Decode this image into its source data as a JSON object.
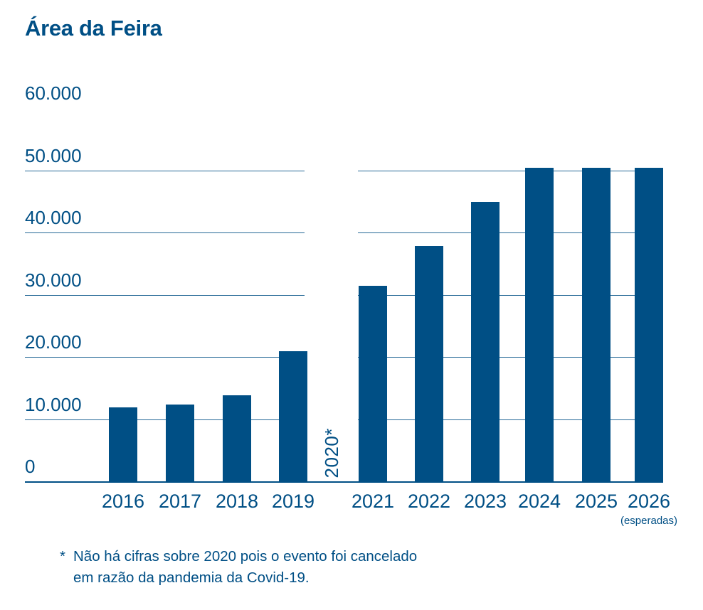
{
  "title": "Área da Feira",
  "colors": {
    "primary": "#004f85",
    "background": "#ffffff"
  },
  "chart_data": {
    "type": "bar",
    "title": "Área da Feira",
    "categories": [
      "2016",
      "2017",
      "2018",
      "2019",
      "2020*",
      "2021",
      "2022",
      "2023",
      "2024",
      "2025",
      "2026"
    ],
    "values": [
      12000,
      12500,
      14000,
      21000,
      null,
      31500,
      38000,
      45000,
      50500,
      50500,
      50500
    ],
    "ylim": [
      0,
      60000
    ],
    "yticks": [
      {
        "label": "60.000",
        "value": 60000
      },
      {
        "label": "50.000",
        "value": 50000
      },
      {
        "label": "40.000",
        "value": 40000
      },
      {
        "label": "30.000",
        "value": 30000
      },
      {
        "label": "20.000",
        "value": 20000
      },
      {
        "label": "10.000",
        "value": 10000
      },
      {
        "label": "0",
        "value": 0
      }
    ],
    "xlabel": "",
    "ylabel": "",
    "grid": true,
    "legend": "none",
    "bar_color": "#004f85",
    "gap_category": "2020*",
    "gap_reason_refers_to_footnote": true
  },
  "annotations": {
    "expected_label": "(esperadas)",
    "footnote_marker": "*",
    "footnote_line1": "Não há cifras sobre 2020 pois o evento foi cancelado",
    "footnote_line2": "em razão da pandemia da Covid-19."
  }
}
